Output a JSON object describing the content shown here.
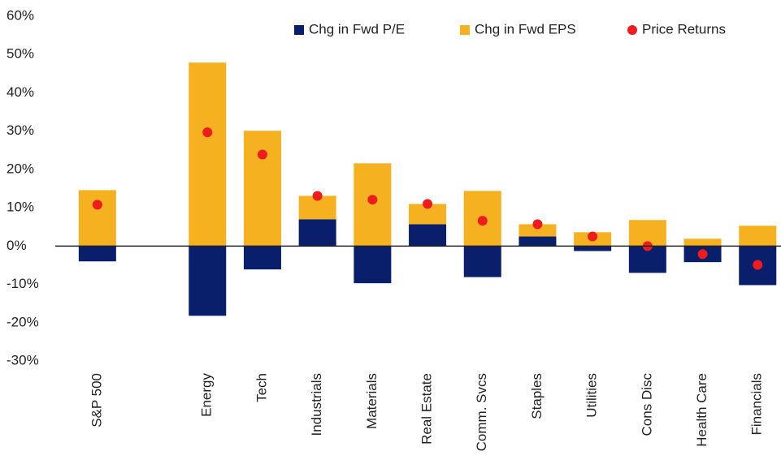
{
  "chart_data": {
    "type": "bar",
    "stacked": true,
    "categories": [
      "S&P 500",
      null,
      "Energy",
      "Tech",
      "Industrials",
      "Materials",
      "Real Estate",
      "Comm. Svcs",
      "Staples",
      "Utilities",
      "Cons Disc",
      "Health Care",
      "Financials"
    ],
    "series": [
      {
        "name": "Chg in Fwd P/E",
        "color": "#0a1f6b",
        "values": [
          -4.0,
          null,
          -18.2,
          -6.1,
          7.0,
          -9.7,
          5.7,
          -8.1,
          2.5,
          -1.3,
          -7.0,
          -4.2,
          -10.2
        ]
      },
      {
        "name": "Chg in Fwd EPS",
        "color": "#f5b120",
        "values": [
          14.6,
          null,
          47.9,
          30.1,
          6.1,
          21.6,
          5.3,
          14.4,
          3.2,
          3.6,
          6.8,
          1.9,
          5.3
        ]
      },
      {
        "name": "Price Returns",
        "type": "dot",
        "color": "#ee1c1c",
        "values": [
          10.8,
          null,
          29.7,
          23.9,
          13.1,
          12.1,
          11.0,
          6.6,
          5.7,
          2.5,
          0.0,
          -2.1,
          -4.9
        ]
      }
    ],
    "ylim": [
      -30,
      60
    ],
    "yticks": [
      {
        "value": -30,
        "label": "-30%"
      },
      {
        "value": -20,
        "label": "-20%"
      },
      {
        "value": -10,
        "label": "-10%"
      },
      {
        "value": 0,
        "label": "0%"
      },
      {
        "value": 10,
        "label": "10%"
      },
      {
        "value": 20,
        "label": "20%"
      },
      {
        "value": 30,
        "label": "30%"
      },
      {
        "value": 40,
        "label": "40%"
      },
      {
        "value": 50,
        "label": "50%"
      },
      {
        "value": 60,
        "label": "60%"
      }
    ],
    "legend": "top-right"
  }
}
